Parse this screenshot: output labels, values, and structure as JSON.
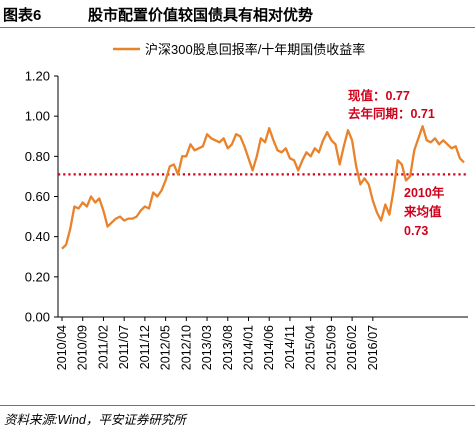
{
  "figure": {
    "number": "图表6",
    "title": "股市配置价值较国债具有相对优势",
    "source": "资料来源:Wind，平安证券研究所"
  },
  "colors": {
    "series": "#e8822b",
    "reference": "#d0021b",
    "annotation": "#d0021b",
    "rule": "#c8581f"
  },
  "chart_data": {
    "type": "line",
    "title": "",
    "xlabel": "",
    "ylabel": "",
    "ylim": [
      0.0,
      1.2
    ],
    "yticks": [
      "0.00",
      "0.20",
      "0.40",
      "0.60",
      "0.80",
      "1.00",
      "1.20"
    ],
    "xticks": [
      "2010/04",
      "2010/09",
      "2011/02",
      "2011/07",
      "2011/12",
      "2012/05",
      "2012/10",
      "2013/03",
      "2013/08",
      "2014/01",
      "2014/06",
      "2014/11",
      "2015/04",
      "2015/09",
      "2016/02",
      "2016/07"
    ],
    "legend": {
      "position": "top-center",
      "label": "沪深300股息回报率/十年期国债收益率"
    },
    "grid": false,
    "series": [
      {
        "name": "沪深300股息回报率/十年期国债收益率",
        "x_start": "2010/04",
        "x_end": "2016/11",
        "values": [
          0.34,
          0.36,
          0.44,
          0.55,
          0.54,
          0.57,
          0.55,
          0.6,
          0.57,
          0.59,
          0.53,
          0.45,
          0.47,
          0.49,
          0.5,
          0.48,
          0.49,
          0.49,
          0.5,
          0.53,
          0.55,
          0.54,
          0.62,
          0.6,
          0.63,
          0.68,
          0.75,
          0.76,
          0.71,
          0.8,
          0.8,
          0.86,
          0.83,
          0.84,
          0.85,
          0.91,
          0.89,
          0.88,
          0.87,
          0.89,
          0.84,
          0.86,
          0.91,
          0.9,
          0.85,
          0.79,
          0.73,
          0.8,
          0.89,
          0.87,
          0.94,
          0.88,
          0.83,
          0.82,
          0.84,
          0.79,
          0.78,
          0.73,
          0.78,
          0.82,
          0.8,
          0.84,
          0.82,
          0.88,
          0.92,
          0.88,
          0.86,
          0.76,
          0.85,
          0.93,
          0.88,
          0.75,
          0.66,
          0.69,
          0.66,
          0.58,
          0.52,
          0.48,
          0.56,
          0.51,
          0.63,
          0.78,
          0.76,
          0.68,
          0.7,
          0.83,
          0.89,
          0.95,
          0.88,
          0.87,
          0.89,
          0.86,
          0.88,
          0.86,
          0.84,
          0.85,
          0.79,
          0.77
        ]
      }
    ],
    "reference_line": {
      "value": 0.71,
      "style": "dotted"
    },
    "annotations": {
      "current": "现值：0.77",
      "last_year": "去年同期：0.71",
      "avg_line1": "2010年",
      "avg_line2": "来均值",
      "avg_line3": "0.73"
    }
  }
}
